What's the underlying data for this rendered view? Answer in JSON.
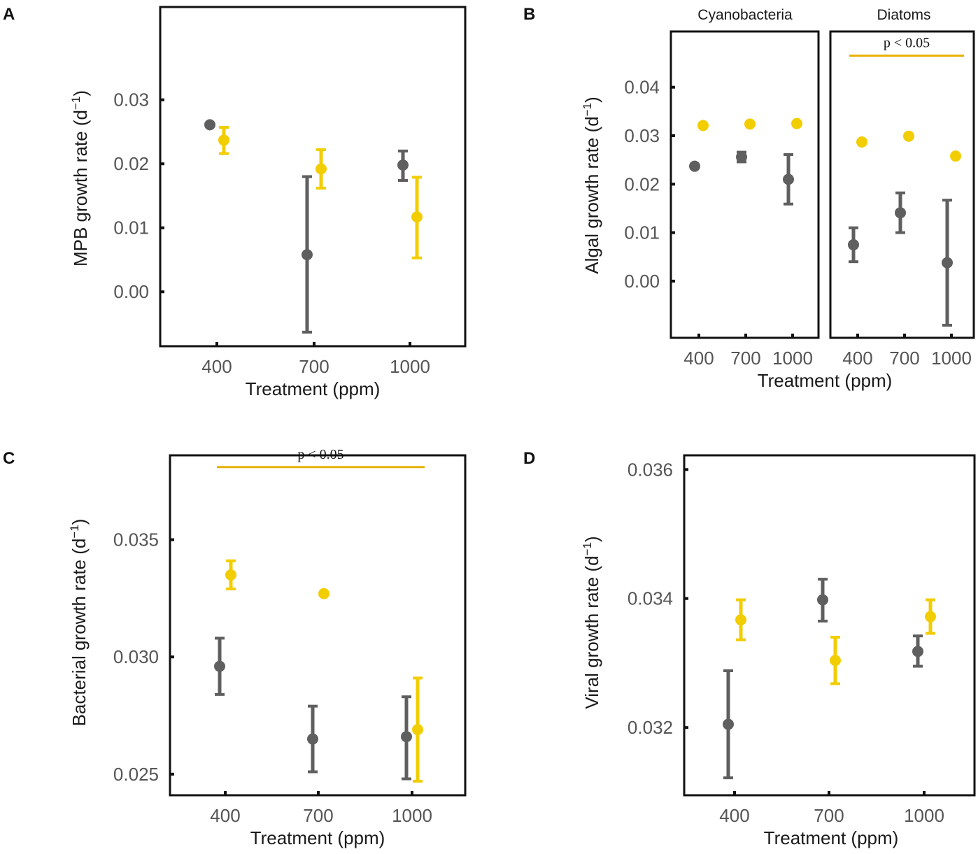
{
  "colors": {
    "ambient": "#5f5f5f",
    "elevated": "#f2cd00",
    "sig_line": "#e8b000",
    "frame": "#111111"
  },
  "chart_data": [
    {
      "panel": "A",
      "type": "scatter",
      "xlabel": "Treatment (ppm)",
      "ylabel": "MPB growth rate",
      "ylabel_unit": "(d",
      "ylabel_exp": "−1",
      "ylabel_close": ")",
      "categories": [
        "400",
        "700",
        "1000"
      ],
      "yticks": [
        "0.00",
        "0.01",
        "0.02",
        "0.03"
      ],
      "ylim": [
        -0.0085,
        0.0445
      ],
      "series": [
        {
          "name": "gray",
          "color": "#5f5f5f",
          "values": [
            0.0261,
            0.0058,
            0.0198
          ],
          "err_low": [
            null,
            -0.0063,
            0.0174
          ],
          "err_high": [
            null,
            0.018,
            0.022
          ]
        },
        {
          "name": "yellow",
          "color": "#f2cd00",
          "values": [
            0.0237,
            0.0192,
            0.0117
          ],
          "err_low": [
            0.0216,
            0.0162,
            0.0053
          ],
          "err_high": [
            0.0257,
            0.0222,
            0.0179
          ]
        }
      ],
      "significance": []
    },
    {
      "panel": "B",
      "type": "scatter",
      "xlabel": "Treatment (ppm)",
      "ylabel": "Algal growth rate",
      "ylabel_unit": "(d",
      "ylabel_exp": "−1",
      "ylabel_close": ")",
      "categories": [
        "400",
        "700",
        "1000"
      ],
      "yticks": [
        "0.00",
        "0.01",
        "0.02",
        "0.03",
        "0.04"
      ],
      "ylim": [
        -0.0117,
        0.0515
      ],
      "facets": [
        {
          "title": "Cyanobacteria",
          "series": [
            {
              "name": "gray",
              "color": "#5f5f5f",
              "values": [
                0.0237,
                0.0256,
                0.021
              ],
              "err_low": [
                null,
                0.0246,
                0.0159
              ],
              "err_high": [
                null,
                0.0266,
                0.0261
              ]
            },
            {
              "name": "yellow",
              "color": "#f2cd00",
              "values": [
                0.0321,
                0.0324,
                0.0325
              ],
              "err_low": [
                null,
                null,
                null
              ],
              "err_high": [
                null,
                null,
                null
              ]
            }
          ],
          "significance": []
        },
        {
          "title": "Diatoms",
          "series": [
            {
              "name": "gray",
              "color": "#5f5f5f",
              "values": [
                0.0075,
                0.0141,
                0.0038
              ],
              "err_low": [
                0.004,
                0.01,
                -0.0091
              ],
              "err_high": [
                0.011,
                0.0182,
                0.0167
              ]
            },
            {
              "name": "yellow",
              "color": "#f2cd00",
              "values": [
                0.0287,
                0.0299,
                0.0258
              ],
              "err_low": [
                null,
                null,
                null
              ],
              "err_high": [
                null,
                null,
                null
              ]
            }
          ],
          "significance": [
            {
              "label": "p < 0.05",
              "y": 0.0465,
              "from": 0,
              "to": 2
            }
          ]
        }
      ]
    },
    {
      "panel": "C",
      "type": "scatter",
      "xlabel": "Treatment (ppm)",
      "ylabel": "Bacterial growth rate",
      "ylabel_unit": "(d",
      "ylabel_exp": "−1",
      "ylabel_close": ")",
      "categories": [
        "400",
        "700",
        "1000"
      ],
      "yticks": [
        "0.025",
        "0.030",
        "0.035"
      ],
      "ylim": [
        0.0241,
        0.0386
      ],
      "series": [
        {
          "name": "gray",
          "color": "#5f5f5f",
          "values": [
            0.0296,
            0.0265,
            0.0266
          ],
          "err_low": [
            0.0284,
            0.0251,
            0.0248
          ],
          "err_high": [
            0.0308,
            0.0279,
            0.0283
          ]
        },
        {
          "name": "yellow",
          "color": "#f2cd00",
          "values": [
            0.0335,
            0.0327,
            0.0269
          ],
          "err_low": [
            0.0329,
            null,
            0.0247
          ],
          "err_high": [
            0.0341,
            null,
            0.0291
          ]
        }
      ],
      "significance": [
        {
          "label": "p < 0.05",
          "y": 0.0381,
          "from": 0,
          "to": 2
        }
      ]
    },
    {
      "panel": "D",
      "type": "scatter",
      "xlabel": "Treatment (ppm)",
      "ylabel": "Viral growth rate",
      "ylabel_unit": "(d",
      "ylabel_exp": "−1",
      "ylabel_close": ")",
      "categories": [
        "400",
        "700",
        "1000"
      ],
      "yticks": [
        "0.032",
        "0.034",
        "0.036"
      ],
      "ylim": [
        0.03095,
        0.03622
      ],
      "series": [
        {
          "name": "gray",
          "color": "#5f5f5f",
          "values": [
            0.03205,
            0.03398,
            0.03318
          ],
          "err_low": [
            0.03122,
            0.03365,
            0.03295
          ],
          "err_high": [
            0.03288,
            0.0343,
            0.03342
          ]
        },
        {
          "name": "yellow",
          "color": "#f2cd00",
          "values": [
            0.03367,
            0.03304,
            0.03372
          ],
          "err_low": [
            0.03336,
            0.03268,
            0.03346
          ],
          "err_high": [
            0.03398,
            0.0334,
            0.03398
          ]
        }
      ],
      "significance": []
    }
  ]
}
